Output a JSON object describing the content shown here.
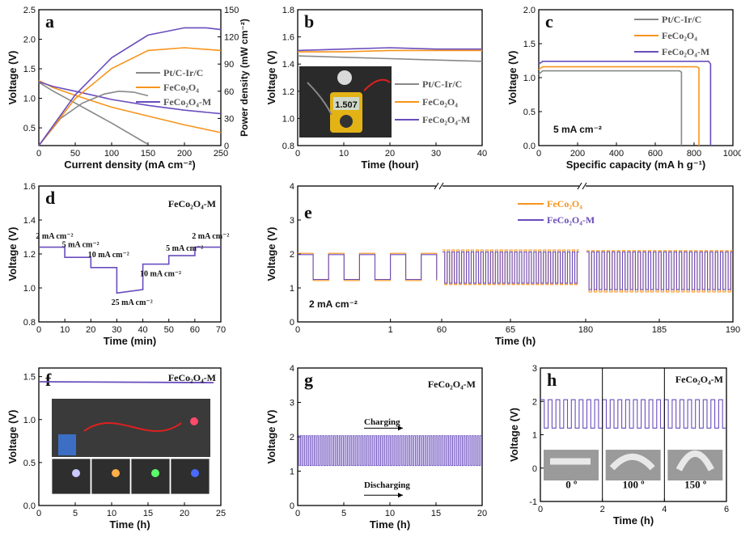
{
  "colors": {
    "gray": "#888888",
    "orange": "#f7941d",
    "purple": "#6a4dbd",
    "red": "#e0301e"
  },
  "chart_data": [
    {
      "panel": "a",
      "type": "line",
      "xlabel": "Current density (mA cm⁻²)",
      "ylabel": "Voltage (V)",
      "y2label": "Power density (mW cm⁻²)",
      "xlim": [
        0,
        250
      ],
      "ylim": [
        0.2,
        2.5
      ],
      "y2lim": [
        0,
        150
      ],
      "xticks": [
        0,
        50,
        100,
        150,
        200,
        250
      ],
      "yticks": [
        0.5,
        1.0,
        1.5,
        2.0,
        2.5
      ],
      "y2ticks": [
        0,
        30,
        60,
        90,
        120,
        150
      ],
      "legend": [
        "Pt/C-Ir/C",
        "FeCo₂O₄",
        "FeCo₂O₄-M"
      ],
      "series": [
        {
          "name": "Pt/C-Ir/C",
          "color": "gray",
          "axis": "y",
          "x": [
            0,
            20,
            50,
            100,
            150
          ],
          "y": [
            1.27,
            1.12,
            0.92,
            0.58,
            0.22
          ]
        },
        {
          "name": "FeCo₂O₄",
          "color": "orange",
          "axis": "y",
          "x": [
            0,
            20,
            50,
            100,
            150,
            200,
            250
          ],
          "y": [
            1.3,
            1.18,
            1.05,
            0.85,
            0.7,
            0.55,
            0.42
          ]
        },
        {
          "name": "FeCo₂O₄-M",
          "color": "purple",
          "axis": "y",
          "x": [
            0,
            20,
            50,
            100,
            150,
            200,
            250
          ],
          "y": [
            1.28,
            1.2,
            1.12,
            0.98,
            0.88,
            0.8,
            0.74
          ]
        },
        {
          "name": "Pt/C-Ir/C",
          "color": "gray",
          "axis": "y2",
          "x": [
            0,
            30,
            60,
            90,
            110,
            130,
            150
          ],
          "y": [
            0,
            30,
            47,
            57,
            60,
            59,
            55
          ]
        },
        {
          "name": "FeCo₂O₄",
          "color": "orange",
          "axis": "y2",
          "x": [
            0,
            50,
            100,
            150,
            200,
            250
          ],
          "y": [
            0,
            52,
            85,
            105,
            108,
            105
          ]
        },
        {
          "name": "FeCo₂O₄-M",
          "color": "purple",
          "axis": "y2",
          "x": [
            0,
            50,
            100,
            150,
            200,
            230,
            250
          ],
          "y": [
            0,
            56,
            97,
            122,
            130,
            130,
            128
          ]
        }
      ]
    },
    {
      "panel": "b",
      "type": "line",
      "xlabel": "Time (hour)",
      "ylabel": "Voltage (V)",
      "xlim": [
        0,
        40
      ],
      "ylim": [
        0.8,
        1.8
      ],
      "xticks": [
        0,
        10,
        20,
        30,
        40
      ],
      "yticks": [
        0.8,
        1.0,
        1.2,
        1.4,
        1.6,
        1.8
      ],
      "legend": [
        "Pt/C-Ir/C",
        "FeCo₂O₄",
        "FeCo₂O₄-M"
      ],
      "inset_readout": "1.507",
      "series": [
        {
          "name": "Pt/C-Ir/C",
          "color": "gray",
          "x": [
            0,
            10,
            20,
            30,
            40
          ],
          "y": [
            1.46,
            1.45,
            1.44,
            1.43,
            1.42
          ]
        },
        {
          "name": "FeCo₂O₄",
          "color": "orange",
          "x": [
            0,
            10,
            20,
            30,
            40
          ],
          "y": [
            1.49,
            1.49,
            1.5,
            1.5,
            1.5
          ]
        },
        {
          "name": "FeCo₂O₄-M",
          "color": "purple",
          "x": [
            0,
            10,
            20,
            30,
            40
          ],
          "y": [
            1.5,
            1.51,
            1.52,
            1.51,
            1.51
          ]
        }
      ]
    },
    {
      "panel": "c",
      "type": "line",
      "xlabel": "Specific capacity (mA h g⁻¹)",
      "ylabel": "Voltage (V)",
      "xlim": [
        0,
        1000
      ],
      "ylim": [
        0,
        2.0
      ],
      "xticks": [
        0,
        200,
        400,
        600,
        800,
        1000
      ],
      "yticks": [
        0.0,
        0.5,
        1.0,
        1.5,
        2.0
      ],
      "legend": [
        "Pt/C-Ir/C",
        "FeCo₂O₄",
        "FeCo₂O₄-M"
      ],
      "annotation": "5 mA cm⁻²",
      "series": [
        {
          "name": "Pt/C-Ir/C",
          "color": "gray",
          "x": [
            0,
            20,
            725,
            735,
            735
          ],
          "y": [
            1.05,
            1.1,
            1.1,
            1.08,
            0
          ]
        },
        {
          "name": "FeCo₂O₄",
          "color": "orange",
          "x": [
            0,
            20,
            815,
            825,
            825
          ],
          "y": [
            1.12,
            1.16,
            1.16,
            1.14,
            0
          ]
        },
        {
          "name": "FeCo₂O₄-M",
          "color": "purple",
          "x": [
            0,
            20,
            875,
            885,
            885
          ],
          "y": [
            1.2,
            1.24,
            1.24,
            1.2,
            0
          ]
        }
      ]
    },
    {
      "panel": "d",
      "type": "line",
      "xlabel": "Time (min)",
      "ylabel": "Voltage (V)",
      "title": "FeCo₂O₄-M",
      "xlim": [
        0,
        70
      ],
      "ylim": [
        0.8,
        1.6
      ],
      "xticks": [
        0,
        10,
        20,
        30,
        40,
        50,
        60,
        70
      ],
      "yticks": [
        0.8,
        1.0,
        1.2,
        1.4,
        1.6
      ],
      "annotations": [
        "2 mA cm⁻²",
        "5 mA cm⁻²",
        "10 mA cm⁻²",
        "25 mA cm⁻²",
        "10 mA cm⁻²",
        "5 mA cm⁻²",
        "2 mA cm⁻²"
      ],
      "series": [
        {
          "name": "FeCo₂O₄-M",
          "color": "purple",
          "x": [
            0,
            10,
            10,
            20,
            20,
            30,
            30,
            40,
            40,
            50,
            50,
            60,
            60,
            70
          ],
          "y": [
            1.24,
            1.24,
            1.18,
            1.18,
            1.12,
            1.12,
            0.97,
            0.99,
            1.14,
            1.14,
            1.19,
            1.19,
            1.24,
            1.24
          ]
        }
      ]
    },
    {
      "panel": "e",
      "type": "line",
      "xlabel": "Time (h)",
      "ylabel": "Voltage (V)",
      "annotation": "2 mA cm⁻²",
      "ylim": [
        0,
        4
      ],
      "yticks": [
        0,
        1,
        2,
        3,
        4
      ],
      "xticks": [
        0,
        1,
        60,
        65,
        180,
        185,
        190
      ],
      "x_segments": [
        [
          0,
          1.5
        ],
        [
          60,
          70
        ],
        [
          180,
          190
        ]
      ],
      "legend": [
        "FeCo₂O₄",
        "FeCo₂O₄-M"
      ],
      "series": [
        {
          "name": "FeCo₂O₄",
          "color": "orange",
          "charge": [
            2.02,
            2.12,
            2.1
          ],
          "discharge": [
            1.22,
            1.1,
            0.88
          ]
        },
        {
          "name": "FeCo₂O₄-M",
          "color": "purple",
          "charge": [
            1.98,
            2.06,
            2.06
          ],
          "discharge": [
            1.25,
            1.14,
            0.95
          ]
        }
      ]
    },
    {
      "panel": "f",
      "type": "line",
      "xlabel": "Time (h)",
      "ylabel": "Voltage (V)",
      "title": "FeCo₂O₄-M",
      "xlim": [
        0,
        25
      ],
      "ylim": [
        0,
        1.6
      ],
      "xticks": [
        0,
        5,
        10,
        15,
        20,
        25
      ],
      "yticks": [
        0.0,
        0.5,
        1.0,
        1.5
      ],
      "series": [
        {
          "name": "FeCo₂O₄-M",
          "color": "purple",
          "x": [
            0,
            24
          ],
          "y": [
            1.44,
            1.43
          ]
        }
      ]
    },
    {
      "panel": "g",
      "type": "line",
      "xlabel": "Time (h)",
      "ylabel": "Voltage (V)",
      "title": "FeCo₂O₄-M",
      "xlim": [
        0,
        20
      ],
      "ylim": [
        0,
        4
      ],
      "xticks": [
        0,
        5,
        10,
        15,
        20
      ],
      "yticks": [
        0,
        1,
        2,
        3,
        4
      ],
      "annotations": [
        "Charging",
        "Discharging"
      ],
      "series": [
        {
          "name": "FeCo₂O₄-M",
          "color": "purple",
          "charge": 2.03,
          "discharge": 1.16
        }
      ]
    },
    {
      "panel": "h",
      "type": "line",
      "xlabel": "Time (h)",
      "ylabel": "Voltage (V)",
      "title": "FeCo₂O₄-M",
      "xlim": [
        0,
        6
      ],
      "ylim": [
        -1,
        3
      ],
      "xticks": [
        0,
        2,
        4,
        6
      ],
      "yticks": [
        -1,
        0,
        1,
        2,
        3
      ],
      "angles": [
        "0 º",
        "100 º",
        "150 º"
      ],
      "series": [
        {
          "name": "FeCo₂O₄-M",
          "color": "purple",
          "charge": 2.05,
          "discharge": 1.2
        }
      ]
    }
  ]
}
